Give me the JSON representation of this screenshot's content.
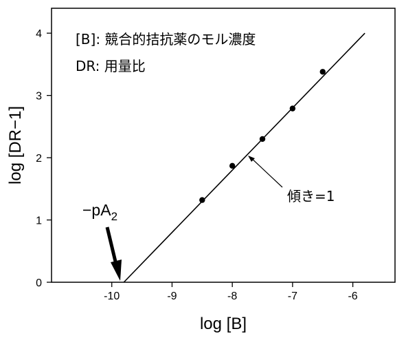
{
  "chart_data": {
    "type": "scatter",
    "xlabel": "log [B]",
    "ylabel": "log [DR−1]",
    "xlim": [
      -11.0,
      -5.3
    ],
    "ylim": [
      0,
      4.4
    ],
    "x_ticks": [
      -10,
      -9,
      -8,
      -7,
      -6
    ],
    "y_ticks": [
      0,
      1,
      2,
      3,
      4
    ],
    "x_tick_labels": [
      "-10",
      "-9",
      "-8",
      "-7",
      "-6"
    ],
    "y_tick_labels": [
      "0",
      "1",
      "2",
      "3",
      "4"
    ],
    "grid": false,
    "points": [
      {
        "x": -8.5,
        "y": 1.32
      },
      {
        "x": -8.0,
        "y": 1.87
      },
      {
        "x": -7.5,
        "y": 2.3
      },
      {
        "x": -7.0,
        "y": 2.79
      },
      {
        "x": -6.5,
        "y": 3.38
      }
    ],
    "fit_line": {
      "slope": 1,
      "intercept_x": -9.8,
      "x_start": -9.8,
      "x_end": -5.8
    },
    "notes": [
      "[B]: 競合的拮抗薬のモル濃度",
      "DR: 用量比"
    ],
    "slope_label": "傾き=1",
    "x_intercept_label": {
      "prefix": "−pA",
      "subscript": "2"
    }
  }
}
